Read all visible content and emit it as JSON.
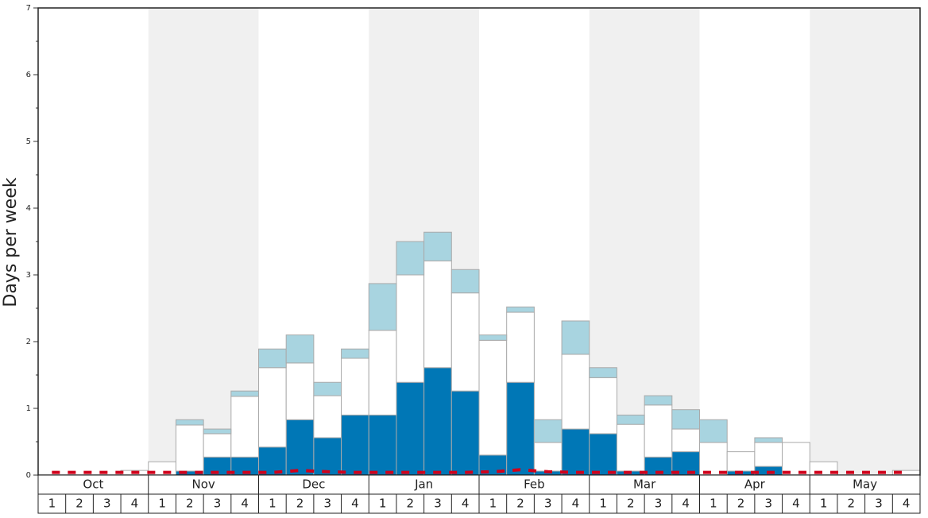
{
  "chart_data": {
    "type": "bar",
    "stacked": true,
    "y_label": "Days per week",
    "months": [
      "Oct",
      "Nov",
      "Dec",
      "Jan",
      "Feb",
      "Mar",
      "Apr",
      "May"
    ],
    "categories": [
      "1",
      "2",
      "3",
      "4",
      "1",
      "2",
      "3",
      "4",
      "1",
      "2",
      "3",
      "4",
      "1",
      "2",
      "3",
      "4",
      "1",
      "2",
      "3",
      "4",
      "1",
      "2",
      "3",
      "4",
      "1",
      "2",
      "3",
      "4",
      "1",
      "2",
      "3",
      "4"
    ],
    "ylim": [
      0,
      7
    ],
    "yticks": [
      0,
      1,
      2,
      3,
      4,
      5,
      6,
      7
    ],
    "yminorticks": [
      0.5,
      1.5,
      2.5,
      3.5,
      4.5,
      5.5,
      6.5
    ],
    "band_color": "#f0f0f0",
    "series": [
      {
        "color": "#0077b6",
        "values": [
          0,
          0,
          0,
          0,
          0,
          0.06,
          0.27,
          0.27,
          0.42,
          0.83,
          0.56,
          0.9,
          0.9,
          1.39,
          1.61,
          1.26,
          0.3,
          1.39,
          0.06,
          0.69,
          0.62,
          0.06,
          0.27,
          0.35,
          0,
          0.06,
          0.13,
          0,
          0,
          0,
          0,
          0
        ]
      },
      {
        "color": "#ffffff",
        "values": [
          0,
          0,
          0,
          0.07,
          0.2,
          0.69,
          0.35,
          0.91,
          1.19,
          0.85,
          0.63,
          0.85,
          1.27,
          1.61,
          1.6,
          1.47,
          1.72,
          1.05,
          0.43,
          1.12,
          0.84,
          0.7,
          0.78,
          0.34,
          0.49,
          0.29,
          0.36,
          0.49,
          0.2,
          0,
          0,
          0.07
        ]
      },
      {
        "color": "#a8d4e0",
        "values": [
          0,
          0,
          0,
          0,
          0,
          0.08,
          0.07,
          0.08,
          0.28,
          0.42,
          0.2,
          0.14,
          0.7,
          0.5,
          0.43,
          0.35,
          0.08,
          0.08,
          0.34,
          0.5,
          0.15,
          0.14,
          0.14,
          0.29,
          0.34,
          0,
          0.07,
          0,
          0,
          0,
          0,
          0
        ]
      },
      {
        "type": "line",
        "color": "#d0021b",
        "dashed": true,
        "values": [
          0.04,
          0.04,
          0.04,
          0.04,
          0.04,
          0.04,
          0.04,
          0.04,
          0.04,
          0.07,
          0.05,
          0.04,
          0.04,
          0.04,
          0.04,
          0.04,
          0.05,
          0.08,
          0.05,
          0.04,
          0.04,
          0.04,
          0.04,
          0.04,
          0.04,
          0.04,
          0.04,
          0.04,
          0.04,
          0.04,
          0.04,
          0.04
        ]
      }
    ]
  }
}
